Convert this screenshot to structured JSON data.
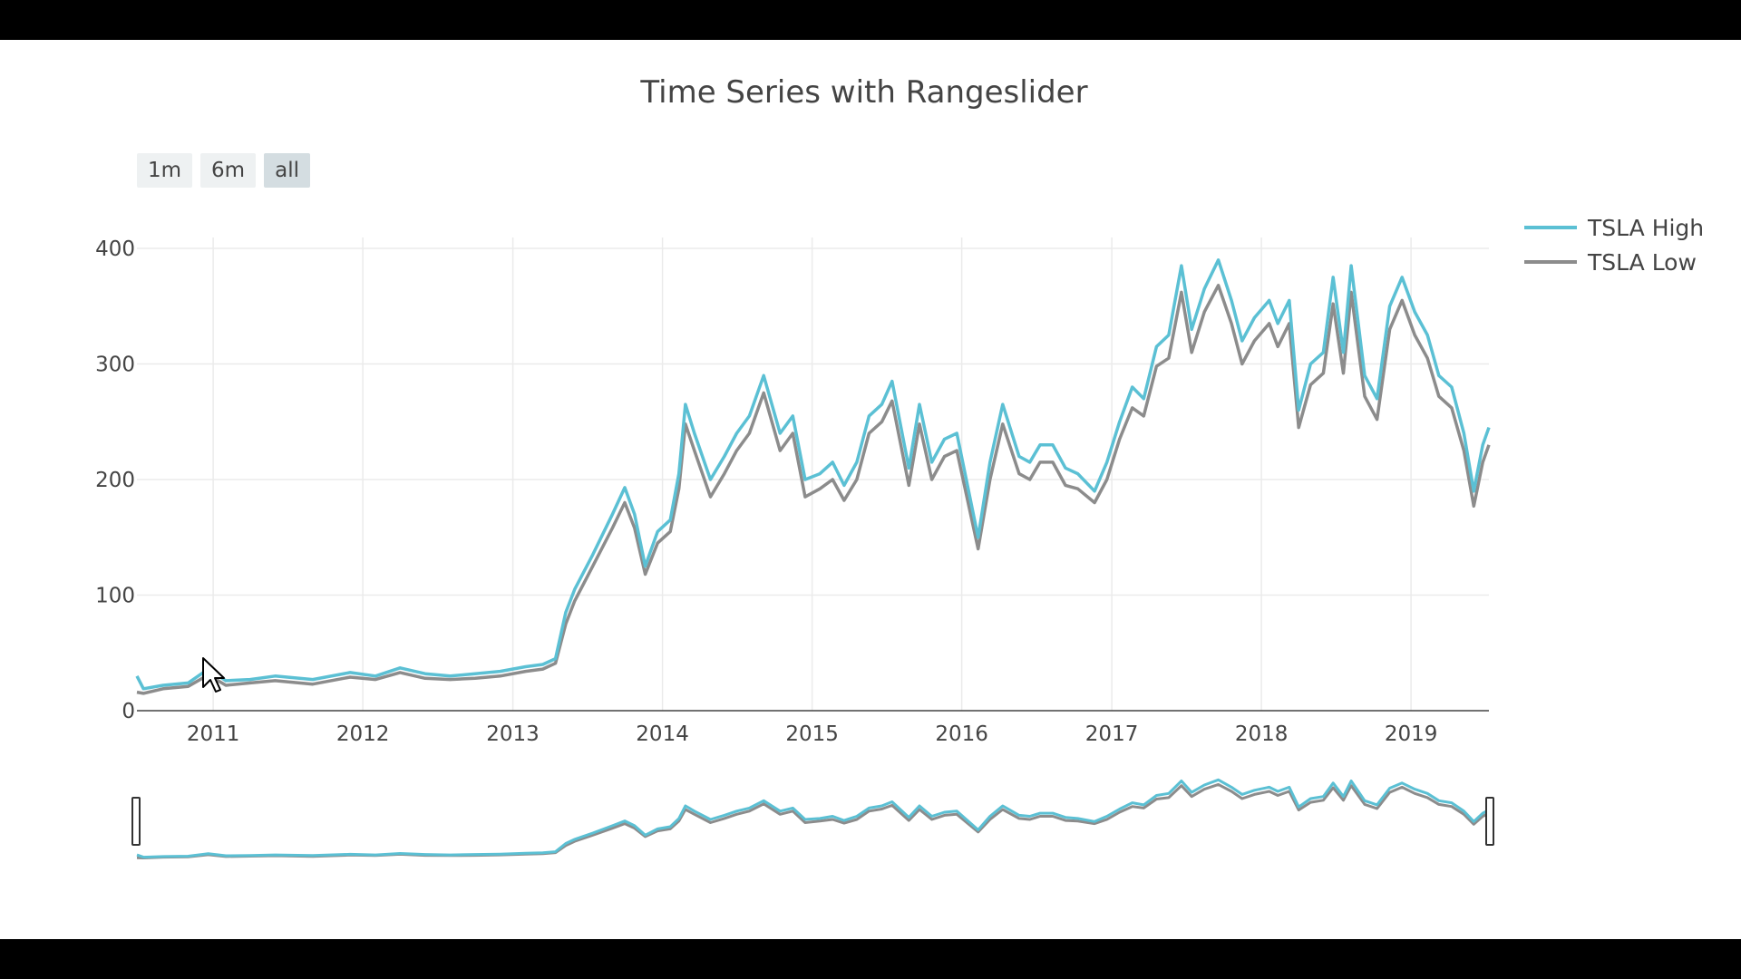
{
  "title": "Time Series with Rangeslider",
  "range_selector": {
    "buttons": [
      {
        "label": "1m",
        "active": false
      },
      {
        "label": "6m",
        "active": false
      },
      {
        "label": "all",
        "active": true
      }
    ]
  },
  "legend": {
    "placement": "right",
    "items": [
      {
        "label": "TSLA High",
        "color": "#5bc0d4"
      },
      {
        "label": "TSLA Low",
        "color": "#8c8c8c"
      }
    ]
  },
  "chart_data": {
    "type": "line",
    "title": "Time Series with Rangeslider",
    "xlim": [
      "2010-06-29",
      "2019-07-10"
    ],
    "ylim": [
      0,
      400
    ],
    "grid": true,
    "x_ticks": [
      "2011",
      "2012",
      "2013",
      "2014",
      "2015",
      "2016",
      "2017",
      "2018",
      "2019"
    ],
    "y_ticks": [
      0,
      100,
      200,
      300,
      400
    ],
    "rangeslider": true,
    "series": [
      {
        "name": "TSLA High",
        "color": "#5bc0d4",
        "points": [
          [
            "2010-06-29",
            30
          ],
          [
            "2010-07-15",
            19
          ],
          [
            "2010-09-01",
            22
          ],
          [
            "2010-11-01",
            24
          ],
          [
            "2010-12-20",
            36
          ],
          [
            "2011-02-01",
            26
          ],
          [
            "2011-04-01",
            27
          ],
          [
            "2011-06-01",
            30
          ],
          [
            "2011-09-01",
            27
          ],
          [
            "2011-12-01",
            33
          ],
          [
            "2012-02-01",
            30
          ],
          [
            "2012-04-01",
            37
          ],
          [
            "2012-06-01",
            32
          ],
          [
            "2012-08-01",
            30
          ],
          [
            "2012-10-01",
            32
          ],
          [
            "2012-12-01",
            34
          ],
          [
            "2013-02-01",
            38
          ],
          [
            "2013-03-15",
            40
          ],
          [
            "2013-04-15",
            45
          ],
          [
            "2013-05-10",
            85
          ],
          [
            "2013-06-01",
            105
          ],
          [
            "2013-07-15",
            135
          ],
          [
            "2013-09-01",
            170
          ],
          [
            "2013-10-01",
            193
          ],
          [
            "2013-10-25",
            170
          ],
          [
            "2013-11-20",
            125
          ],
          [
            "2013-12-20",
            155
          ],
          [
            "2014-01-20",
            165
          ],
          [
            "2014-02-10",
            205
          ],
          [
            "2014-02-26",
            265
          ],
          [
            "2014-03-20",
            240
          ],
          [
            "2014-04-28",
            200
          ],
          [
            "2014-06-01",
            220
          ],
          [
            "2014-07-01",
            240
          ],
          [
            "2014-08-01",
            255
          ],
          [
            "2014-09-05",
            290
          ],
          [
            "2014-10-15",
            240
          ],
          [
            "2014-11-15",
            255
          ],
          [
            "2014-12-15",
            200
          ],
          [
            "2015-01-20",
            205
          ],
          [
            "2015-02-20",
            215
          ],
          [
            "2015-03-20",
            195
          ],
          [
            "2015-04-20",
            215
          ],
          [
            "2015-05-20",
            255
          ],
          [
            "2015-06-20",
            265
          ],
          [
            "2015-07-15",
            285
          ],
          [
            "2015-08-25",
            210
          ],
          [
            "2015-09-20",
            265
          ],
          [
            "2015-10-20",
            215
          ],
          [
            "2015-11-20",
            235
          ],
          [
            "2015-12-20",
            240
          ],
          [
            "2016-02-10",
            150
          ],
          [
            "2016-03-10",
            215
          ],
          [
            "2016-04-10",
            265
          ],
          [
            "2016-05-20",
            220
          ],
          [
            "2016-06-15",
            215
          ],
          [
            "2016-07-10",
            230
          ],
          [
            "2016-08-10",
            230
          ],
          [
            "2016-09-10",
            210
          ],
          [
            "2016-10-10",
            205
          ],
          [
            "2016-11-20",
            190
          ],
          [
            "2016-12-20",
            215
          ],
          [
            "2017-01-20",
            250
          ],
          [
            "2017-02-20",
            280
          ],
          [
            "2017-03-20",
            270
          ],
          [
            "2017-04-20",
            315
          ],
          [
            "2017-05-20",
            325
          ],
          [
            "2017-06-20",
            385
          ],
          [
            "2017-07-15",
            330
          ],
          [
            "2017-08-15",
            365
          ],
          [
            "2017-09-18",
            390
          ],
          [
            "2017-10-20",
            355
          ],
          [
            "2017-11-15",
            320
          ],
          [
            "2017-12-15",
            340
          ],
          [
            "2018-01-20",
            355
          ],
          [
            "2018-02-10",
            335
          ],
          [
            "2018-03-10",
            355
          ],
          [
            "2018-04-02",
            260
          ],
          [
            "2018-05-01",
            300
          ],
          [
            "2018-06-01",
            310
          ],
          [
            "2018-06-25",
            375
          ],
          [
            "2018-07-20",
            310
          ],
          [
            "2018-08-08",
            385
          ],
          [
            "2018-09-10",
            290
          ],
          [
            "2018-10-10",
            270
          ],
          [
            "2018-11-10",
            350
          ],
          [
            "2018-12-10",
            375
          ],
          [
            "2019-01-10",
            345
          ],
          [
            "2019-02-10",
            325
          ],
          [
            "2019-03-10",
            290
          ],
          [
            "2019-04-10",
            280
          ],
          [
            "2019-05-10",
            240
          ],
          [
            "2019-06-03",
            190
          ],
          [
            "2019-06-25",
            230
          ],
          [
            "2019-07-10",
            245
          ]
        ]
      },
      {
        "name": "TSLA Low",
        "color": "#8c8c8c",
        "points": [
          [
            "2010-06-29",
            16
          ],
          [
            "2010-07-15",
            15
          ],
          [
            "2010-09-01",
            19
          ],
          [
            "2010-11-01",
            21
          ],
          [
            "2010-12-20",
            31
          ],
          [
            "2011-02-01",
            22
          ],
          [
            "2011-04-01",
            24
          ],
          [
            "2011-06-01",
            26
          ],
          [
            "2011-09-01",
            23
          ],
          [
            "2011-12-01",
            29
          ],
          [
            "2012-02-01",
            27
          ],
          [
            "2012-04-01",
            33
          ],
          [
            "2012-06-01",
            28
          ],
          [
            "2012-08-01",
            27
          ],
          [
            "2012-10-01",
            28
          ],
          [
            "2012-12-01",
            30
          ],
          [
            "2013-02-01",
            34
          ],
          [
            "2013-03-15",
            36
          ],
          [
            "2013-04-15",
            41
          ],
          [
            "2013-05-10",
            75
          ],
          [
            "2013-06-01",
            95
          ],
          [
            "2013-07-15",
            125
          ],
          [
            "2013-09-01",
            158
          ],
          [
            "2013-10-01",
            180
          ],
          [
            "2013-10-25",
            158
          ],
          [
            "2013-11-20",
            118
          ],
          [
            "2013-12-20",
            145
          ],
          [
            "2014-01-20",
            155
          ],
          [
            "2014-02-10",
            192
          ],
          [
            "2014-02-26",
            248
          ],
          [
            "2014-03-20",
            225
          ],
          [
            "2014-04-28",
            185
          ],
          [
            "2014-06-01",
            205
          ],
          [
            "2014-07-01",
            225
          ],
          [
            "2014-08-01",
            240
          ],
          [
            "2014-09-05",
            275
          ],
          [
            "2014-10-15",
            225
          ],
          [
            "2014-11-15",
            240
          ],
          [
            "2014-12-15",
            185
          ],
          [
            "2015-01-20",
            192
          ],
          [
            "2015-02-20",
            200
          ],
          [
            "2015-03-20",
            182
          ],
          [
            "2015-04-20",
            200
          ],
          [
            "2015-05-20",
            240
          ],
          [
            "2015-06-20",
            250
          ],
          [
            "2015-07-15",
            268
          ],
          [
            "2015-08-25",
            195
          ],
          [
            "2015-09-20",
            248
          ],
          [
            "2015-10-20",
            200
          ],
          [
            "2015-11-20",
            220
          ],
          [
            "2015-12-20",
            225
          ],
          [
            "2016-02-10",
            140
          ],
          [
            "2016-03-10",
            200
          ],
          [
            "2016-04-10",
            248
          ],
          [
            "2016-05-20",
            205
          ],
          [
            "2016-06-15",
            200
          ],
          [
            "2016-07-10",
            215
          ],
          [
            "2016-08-10",
            215
          ],
          [
            "2016-09-10",
            195
          ],
          [
            "2016-10-10",
            192
          ],
          [
            "2016-11-20",
            180
          ],
          [
            "2016-12-20",
            200
          ],
          [
            "2017-01-20",
            235
          ],
          [
            "2017-02-20",
            262
          ],
          [
            "2017-03-20",
            255
          ],
          [
            "2017-04-20",
            298
          ],
          [
            "2017-05-20",
            305
          ],
          [
            "2017-06-20",
            362
          ],
          [
            "2017-07-15",
            310
          ],
          [
            "2017-08-15",
            345
          ],
          [
            "2017-09-18",
            368
          ],
          [
            "2017-10-20",
            335
          ],
          [
            "2017-11-15",
            300
          ],
          [
            "2017-12-15",
            320
          ],
          [
            "2018-01-20",
            335
          ],
          [
            "2018-02-10",
            315
          ],
          [
            "2018-03-10",
            335
          ],
          [
            "2018-04-02",
            245
          ],
          [
            "2018-05-01",
            282
          ],
          [
            "2018-06-01",
            292
          ],
          [
            "2018-06-25",
            352
          ],
          [
            "2018-07-20",
            292
          ],
          [
            "2018-08-08",
            362
          ],
          [
            "2018-09-10",
            272
          ],
          [
            "2018-10-10",
            252
          ],
          [
            "2018-11-10",
            330
          ],
          [
            "2018-12-10",
            355
          ],
          [
            "2019-01-10",
            325
          ],
          [
            "2019-02-10",
            305
          ],
          [
            "2019-03-10",
            272
          ],
          [
            "2019-04-10",
            262
          ],
          [
            "2019-05-10",
            225
          ],
          [
            "2019-06-03",
            177
          ],
          [
            "2019-06-25",
            215
          ],
          [
            "2019-07-10",
            230
          ]
        ]
      }
    ]
  }
}
